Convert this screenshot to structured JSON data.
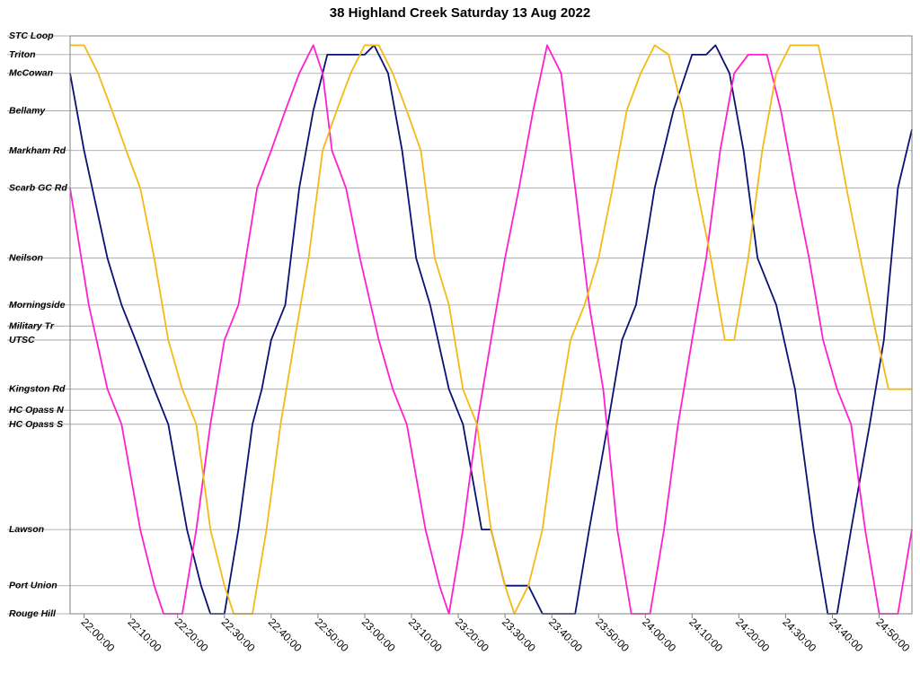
{
  "chart_data": {
    "type": "line",
    "title": "38 Highland Creek Saturday 13 Aug 2022",
    "xlabel": "",
    "ylabel": "",
    "x_unit": "time of day (tick labels continue past midnight as 24:xx)",
    "xlim": [
      "21:57:00",
      "24:57:00"
    ],
    "x_ticks": [
      "22:00:00",
      "22:10:00",
      "22:20:00",
      "22:30:00",
      "22:40:00",
      "22:50:00",
      "23:00:00",
      "23:10:00",
      "23:20:00",
      "23:30:00",
      "23:40:00",
      "23:50:00",
      "24:00:00",
      "24:10:00",
      "24:20:00",
      "24:30:00",
      "24:40:00",
      "24:50:00"
    ],
    "stops": [
      {
        "name": "STC Loop",
        "pos": 0
      },
      {
        "name": "Triton",
        "pos": 0.4
      },
      {
        "name": "McCowan",
        "pos": 0.8
      },
      {
        "name": "Bellamy",
        "pos": 1.6
      },
      {
        "name": "Markham Rd",
        "pos": 2.45
      },
      {
        "name": "Scarb GC Rd",
        "pos": 3.25
      },
      {
        "name": "Neilson",
        "pos": 4.75
      },
      {
        "name": "Morningside",
        "pos": 5.75
      },
      {
        "name": "Military Tr",
        "pos": 6.2
      },
      {
        "name": "UTSC",
        "pos": 6.5
      },
      {
        "name": "Kingston Rd",
        "pos": 7.55
      },
      {
        "name": "HC Opass N",
        "pos": 8
      },
      {
        "name": "HC Opass S",
        "pos": 8.3
      },
      {
        "name": "Lawson",
        "pos": 10.55
      },
      {
        "name": "Port Union",
        "pos": 11.75
      },
      {
        "name": "Rouge Hill",
        "pos": 12.35
      }
    ],
    "grid": true,
    "legend": "none",
    "series": [
      {
        "color": "#0a1172",
        "points": [
          [
            "21:57:00",
            0.8
          ],
          [
            "22:00:00",
            2.45
          ],
          [
            "22:05:00",
            4.75
          ],
          [
            "22:08:00",
            5.75
          ],
          [
            "22:11:00",
            6.5
          ],
          [
            "22:15:00",
            7.55
          ],
          [
            "22:18:00",
            8.3
          ],
          [
            "22:22:00",
            10.55
          ],
          [
            "22:25:00",
            11.75
          ],
          [
            "22:27:00",
            12.35
          ],
          [
            "22:30:00",
            12.35
          ],
          [
            "22:33:00",
            10.55
          ],
          [
            "22:36:00",
            8.3
          ],
          [
            "22:38:00",
            7.55
          ],
          [
            "22:40:00",
            6.5
          ],
          [
            "22:43:00",
            5.75
          ],
          [
            "22:46:00",
            3.25
          ],
          [
            "22:49:00",
            1.6
          ],
          [
            "22:52:00",
            0.4
          ],
          [
            "22:55:00",
            0.4
          ],
          [
            "23:00:00",
            0.4
          ],
          [
            "23:02:00",
            0.2
          ],
          [
            "23:05:00",
            0.8
          ],
          [
            "23:08:00",
            2.45
          ],
          [
            "23:11:00",
            4.75
          ],
          [
            "23:14:00",
            5.75
          ],
          [
            "23:18:00",
            7.55
          ],
          [
            "23:21:00",
            8.3
          ],
          [
            "23:25:00",
            10.55
          ],
          [
            "23:27:00",
            10.55
          ],
          [
            "23:30:00",
            11.75
          ],
          [
            "23:35:00",
            11.75
          ],
          [
            "23:38:00",
            12.35
          ],
          [
            "23:45:00",
            12.35
          ],
          [
            "23:48:00",
            10.55
          ],
          [
            "23:52:00",
            8.3
          ],
          [
            "23:55:00",
            6.5
          ],
          [
            "23:58:00",
            5.75
          ],
          [
            "24:02:00",
            3.25
          ],
          [
            "24:06:00",
            1.6
          ],
          [
            "24:10:00",
            0.4
          ],
          [
            "24:13:00",
            0.4
          ],
          [
            "24:15:00",
            0.2
          ],
          [
            "24:18:00",
            0.8
          ],
          [
            "24:21:00",
            2.45
          ],
          [
            "24:24:00",
            4.75
          ],
          [
            "24:28:00",
            5.75
          ],
          [
            "24:32:00",
            7.55
          ],
          [
            "24:36:00",
            10.55
          ],
          [
            "24:39:00",
            12.35
          ],
          [
            "24:41:00",
            12.35
          ],
          [
            "24:44:00",
            10.55
          ],
          [
            "24:48:00",
            8.3
          ],
          [
            "24:51:00",
            6.5
          ],
          [
            "24:54:00",
            3.25
          ],
          [
            "24:57:00",
            2.0
          ]
        ]
      },
      {
        "color": "#ff1fcf",
        "points": [
          [
            "21:57:00",
            3.25
          ],
          [
            "22:01:00",
            5.75
          ],
          [
            "22:05:00",
            7.55
          ],
          [
            "22:08:00",
            8.3
          ],
          [
            "22:12:00",
            10.55
          ],
          [
            "22:15:00",
            11.75
          ],
          [
            "22:17:00",
            12.35
          ],
          [
            "22:21:00",
            12.35
          ],
          [
            "22:24:00",
            10.55
          ],
          [
            "22:27:00",
            8.3
          ],
          [
            "22:30:00",
            6.5
          ],
          [
            "22:33:00",
            5.75
          ],
          [
            "22:37:00",
            3.25
          ],
          [
            "22:40:00",
            2.45
          ],
          [
            "22:43:00",
            1.6
          ],
          [
            "22:46:00",
            0.8
          ],
          [
            "22:49:00",
            0.2
          ],
          [
            "22:51:00",
            0.8
          ],
          [
            "22:53:00",
            2.45
          ],
          [
            "22:56:00",
            3.25
          ],
          [
            "22:59:00",
            4.75
          ],
          [
            "23:03:00",
            6.5
          ],
          [
            "23:06:00",
            7.55
          ],
          [
            "23:09:00",
            8.3
          ],
          [
            "23:13:00",
            10.55
          ],
          [
            "23:16:00",
            11.75
          ],
          [
            "23:18:00",
            12.35
          ],
          [
            "23:21:00",
            10.55
          ],
          [
            "23:24:00",
            8.3
          ],
          [
            "23:27:00",
            6.5
          ],
          [
            "23:30:00",
            4.75
          ],
          [
            "23:33:00",
            3.25
          ],
          [
            "23:36:00",
            1.6
          ],
          [
            "23:39:00",
            0.2
          ],
          [
            "23:42:00",
            0.8
          ],
          [
            "23:45:00",
            3.25
          ],
          [
            "23:48:00",
            5.75
          ],
          [
            "23:51:00",
            7.55
          ],
          [
            "23:54:00",
            10.55
          ],
          [
            "23:57:00",
            12.35
          ],
          [
            "24:01:00",
            12.35
          ],
          [
            "24:04:00",
            10.55
          ],
          [
            "24:07:00",
            8.3
          ],
          [
            "24:10:00",
            6.5
          ],
          [
            "24:13:00",
            4.75
          ],
          [
            "24:16:00",
            2.45
          ],
          [
            "24:19:00",
            0.8
          ],
          [
            "24:22:00",
            0.4
          ],
          [
            "24:26:00",
            0.4
          ],
          [
            "24:29:00",
            1.6
          ],
          [
            "24:32:00",
            3.25
          ],
          [
            "24:35:00",
            4.75
          ],
          [
            "24:38:00",
            6.5
          ],
          [
            "24:41:00",
            7.55
          ],
          [
            "24:44:00",
            8.3
          ],
          [
            "24:47:00",
            10.55
          ],
          [
            "24:50:00",
            12.35
          ],
          [
            "24:54:00",
            12.35
          ],
          [
            "24:57:00",
            10.55
          ]
        ]
      },
      {
        "color": "#f5b915",
        "points": [
          [
            "21:57:00",
            0.2
          ],
          [
            "22:00:00",
            0.2
          ],
          [
            "22:03:00",
            0.8
          ],
          [
            "22:06:00",
            1.6
          ],
          [
            "22:09:00",
            2.45
          ],
          [
            "22:12:00",
            3.25
          ],
          [
            "22:15:00",
            4.75
          ],
          [
            "22:18:00",
            6.5
          ],
          [
            "22:21:00",
            7.55
          ],
          [
            "22:24:00",
            8.3
          ],
          [
            "22:27:00",
            10.55
          ],
          [
            "22:30:00",
            11.75
          ],
          [
            "22:32:00",
            12.35
          ],
          [
            "22:36:00",
            12.35
          ],
          [
            "22:39:00",
            10.55
          ],
          [
            "22:42:00",
            8.3
          ],
          [
            "22:45:00",
            6.5
          ],
          [
            "22:48:00",
            4.75
          ],
          [
            "22:51:00",
            2.45
          ],
          [
            "22:54:00",
            1.6
          ],
          [
            "22:57:00",
            0.8
          ],
          [
            "23:00:00",
            0.2
          ],
          [
            "23:03:00",
            0.2
          ],
          [
            "23:06:00",
            0.8
          ],
          [
            "23:09:00",
            1.6
          ],
          [
            "23:12:00",
            2.45
          ],
          [
            "23:15:00",
            4.75
          ],
          [
            "23:18:00",
            5.75
          ],
          [
            "23:21:00",
            7.55
          ],
          [
            "23:24:00",
            8.3
          ],
          [
            "23:27:00",
            10.55
          ],
          [
            "23:30:00",
            11.75
          ],
          [
            "23:32:00",
            12.35
          ],
          [
            "23:35:00",
            11.75
          ],
          [
            "23:38:00",
            10.55
          ],
          [
            "23:41:00",
            8.3
          ],
          [
            "23:44:00",
            6.5
          ],
          [
            "23:47:00",
            5.75
          ],
          [
            "23:50:00",
            4.75
          ],
          [
            "23:53:00",
            3.25
          ],
          [
            "23:56:00",
            1.6
          ],
          [
            "23:59:00",
            0.8
          ],
          [
            "24:02:00",
            0.2
          ],
          [
            "24:05:00",
            0.4
          ],
          [
            "24:08:00",
            1.6
          ],
          [
            "24:11:00",
            3.25
          ],
          [
            "24:14:00",
            4.75
          ],
          [
            "24:17:00",
            6.5
          ],
          [
            "24:19:00",
            6.5
          ],
          [
            "24:22:00",
            4.75
          ],
          [
            "24:25:00",
            2.45
          ],
          [
            "24:28:00",
            0.8
          ],
          [
            "24:31:00",
            0.2
          ],
          [
            "24:37:00",
            0.2
          ],
          [
            "24:40:00",
            1.6
          ],
          [
            "24:43:00",
            3.25
          ],
          [
            "24:46:00",
            4.75
          ],
          [
            "24:49:00",
            6.2
          ],
          [
            "24:52:00",
            7.55
          ],
          [
            "24:57:00",
            7.55
          ]
        ]
      }
    ]
  }
}
